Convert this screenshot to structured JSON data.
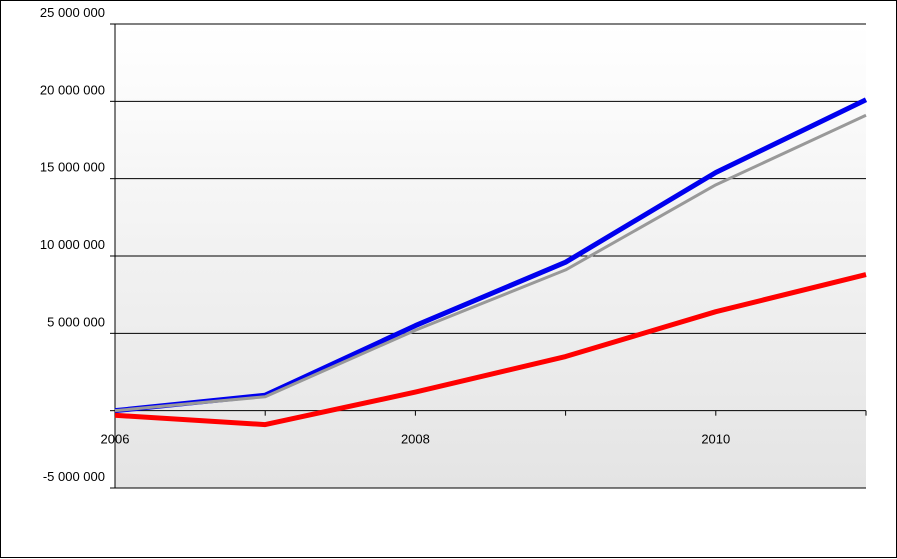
{
  "chart_data": {
    "type": "line",
    "title": "",
    "xlabel": "",
    "ylabel": "",
    "x": [
      2006,
      2007,
      2008,
      2009,
      2010,
      2011
    ],
    "x_tick_labels": [
      "2006",
      "",
      "2008",
      "",
      "2010",
      ""
    ],
    "y_tick_labels": [
      "25 000 000",
      "20 000 000",
      "15 000 000",
      "10 000 000",
      "5 000 000",
      "-5 000 000"
    ],
    "y_ticks": [
      25000000,
      20000000,
      15000000,
      10000000,
      5000000,
      -5000000
    ],
    "ylim": [
      -5000000,
      25000000
    ],
    "grid": true,
    "legend": "none",
    "series": [
      {
        "color": "#0000ee",
        "values": [
          0,
          1000000,
          5500000,
          9600000,
          15400000,
          20100000
        ]
      },
      {
        "color": "#999999",
        "values": [
          0,
          900000,
          5200000,
          9100000,
          14600000,
          19100000
        ]
      },
      {
        "color": "#ff0000",
        "values": [
          -300000,
          -900000,
          1200000,
          3500000,
          6400000,
          8800000
        ]
      }
    ]
  }
}
